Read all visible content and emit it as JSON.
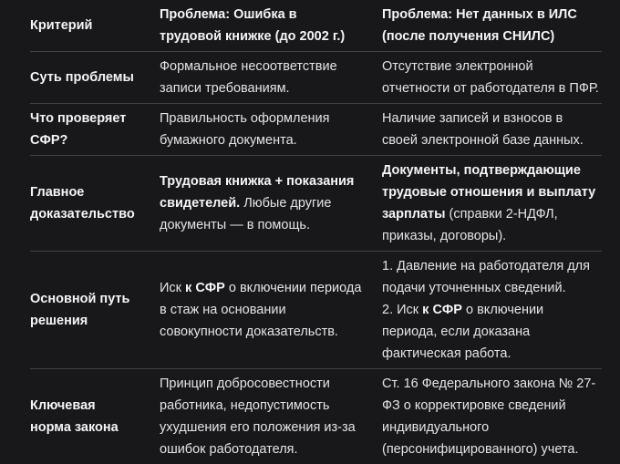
{
  "theme": {
    "background": "#18181b",
    "text_color": "#e4e4e4",
    "bold_text_color": "#f5f5f5",
    "divider_color": "#414144"
  },
  "table": {
    "column_count": 3,
    "rows": [
      {
        "cells": [
          {
            "lines": [
              [
                {
                  "t": "Критерий",
                  "b": true
                }
              ]
            ]
          },
          {
            "lines": [
              [
                {
                  "t": "Проблема: Ошибка в трудовой книжке (до 2002 г.)",
                  "b": true
                }
              ]
            ]
          },
          {
            "lines": [
              [
                {
                  "t": "Проблема: Нет данных в ИЛС (после получения СНИЛС)",
                  "b": true
                }
              ]
            ]
          }
        ]
      },
      {
        "cells": [
          {
            "lines": [
              [
                {
                  "t": "Суть проблемы",
                  "b": true
                }
              ]
            ]
          },
          {
            "lines": [
              [
                {
                  "t": "Формальное несоответствие записи требованиям.",
                  "b": false
                }
              ]
            ]
          },
          {
            "lines": [
              [
                {
                  "t": "Отсутствие электронной отчетности от работодателя в ПФР.",
                  "b": false
                }
              ]
            ]
          }
        ]
      },
      {
        "cells": [
          {
            "lines": [
              [
                {
                  "t": "Что проверяет СФР?",
                  "b": true
                }
              ]
            ]
          },
          {
            "lines": [
              [
                {
                  "t": "Правильность оформления бумажного документа.",
                  "b": false
                }
              ]
            ]
          },
          {
            "lines": [
              [
                {
                  "t": "Наличие записей и взносов в своей электронной базе данных.",
                  "b": false
                }
              ]
            ]
          }
        ]
      },
      {
        "cells": [
          {
            "lines": [
              [
                {
                  "t": "Главное доказательство",
                  "b": true
                }
              ]
            ]
          },
          {
            "lines": [
              [
                {
                  "t": "Трудовая книжка + показания свидетелей.",
                  "b": true
                },
                {
                  "t": " Любые другие документы — в помощь.",
                  "b": false
                }
              ]
            ]
          },
          {
            "lines": [
              [
                {
                  "t": "Документы, подтверждающие трудовые отношения и выплату зарплаты",
                  "b": true
                },
                {
                  "t": " (справки 2-НДФЛ, приказы, договоры).",
                  "b": false
                }
              ]
            ]
          }
        ]
      },
      {
        "cells": [
          {
            "lines": [
              [
                {
                  "t": "Основной путь решения",
                  "b": true
                }
              ]
            ]
          },
          {
            "lines": [
              [
                {
                  "t": "Иск ",
                  "b": false
                },
                {
                  "t": "к СФР",
                  "b": true
                },
                {
                  "t": " о включении периода в стаж на основании совокупности доказательств.",
                  "b": false
                }
              ]
            ]
          },
          {
            "lines": [
              [
                {
                  "t": "1. Давление на работодателя для подачи уточненных сведений.",
                  "b": false
                }
              ],
              [
                {
                  "t": "2. Иск ",
                  "b": false
                },
                {
                  "t": "к СФР",
                  "b": true
                },
                {
                  "t": " о включении периода, если доказана фактическая работа.",
                  "b": false
                }
              ]
            ]
          }
        ]
      },
      {
        "cells": [
          {
            "lines": [
              [
                {
                  "t": "Ключевая норма закона",
                  "b": true
                }
              ]
            ]
          },
          {
            "lines": [
              [
                {
                  "t": "Принцип добросовестности работника, недопустимость ухудшения его положения из-за ошибок работодателя.",
                  "b": false
                }
              ]
            ]
          },
          {
            "lines": [
              [
                {
                  "t": "Ст. 16 Федерального закона № 27-ФЗ о корректировке сведений индивидуального (персонифицированного) учета.",
                  "b": false
                }
              ]
            ]
          }
        ]
      }
    ]
  }
}
